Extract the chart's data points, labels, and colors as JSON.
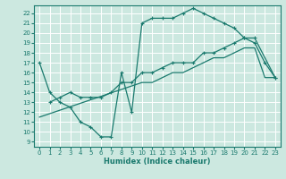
{
  "xlabel": "Humidex (Indice chaleur)",
  "xlim": [
    -0.5,
    23.5
  ],
  "ylim": [
    8.5,
    22.8
  ],
  "yticks": [
    9,
    10,
    11,
    12,
    13,
    14,
    15,
    16,
    17,
    18,
    19,
    20,
    21,
    22
  ],
  "xticks": [
    0,
    1,
    2,
    3,
    4,
    5,
    6,
    7,
    8,
    9,
    10,
    11,
    12,
    13,
    14,
    15,
    16,
    17,
    18,
    19,
    20,
    21,
    22,
    23
  ],
  "bg_color": "#cce8e0",
  "grid_color": "#ffffff",
  "line_color": "#1a7a6e",
  "line1_x": [
    0,
    1,
    2,
    3,
    4,
    5,
    6,
    7,
    8,
    9,
    10,
    11,
    12,
    13,
    14,
    15,
    16,
    17,
    18,
    19,
    20,
    21,
    22,
    23
  ],
  "line1_y": [
    17,
    14,
    13,
    12.5,
    11,
    10.5,
    9.5,
    9.5,
    16,
    12,
    21,
    21.5,
    21.5,
    21.5,
    22,
    22.5,
    22,
    21.5,
    21,
    20.5,
    19.5,
    19,
    17,
    15.5
  ],
  "line2_x": [
    1,
    2,
    3,
    4,
    5,
    6,
    7,
    8,
    9,
    10,
    11,
    12,
    13,
    14,
    15,
    16,
    17,
    18,
    19,
    20,
    21,
    23
  ],
  "line2_y": [
    13,
    13.5,
    14,
    13.5,
    13.5,
    13.5,
    14,
    15,
    15,
    16,
    16,
    16.5,
    17,
    17,
    17,
    18,
    18,
    18.5,
    19,
    19.5,
    19.5,
    15.5
  ],
  "line3_x": [
    0,
    10,
    11,
    12,
    13,
    14,
    15,
    16,
    17,
    18,
    19,
    20,
    21,
    22,
    23
  ],
  "line3_y": [
    11.5,
    15,
    15,
    15.5,
    16,
    16,
    16.5,
    17,
    17.5,
    17.5,
    18,
    18.5,
    18.5,
    15.5,
    15.5
  ]
}
